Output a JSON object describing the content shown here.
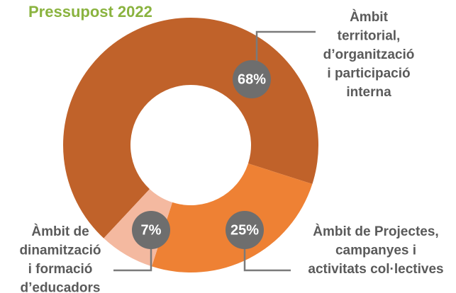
{
  "chart_data": {
    "type": "donut",
    "title": "Pressupost 2022",
    "categories": [
      [
        "Àmbit",
        "territorial,",
        "d’organització",
        "i participació",
        "interna"
      ],
      [
        "Àmbit de Projectes,",
        "campanyes i",
        "activitats col·lectives"
      ],
      [
        "Àmbit de",
        "dinamització",
        "i formació",
        "d’educadors"
      ]
    ],
    "values": [
      68,
      25,
      7
    ],
    "value_labels": [
      "68%",
      "25%",
      "7%"
    ],
    "colors": [
      "#c0622a",
      "#ee8134",
      "#f4b9a0"
    ]
  }
}
